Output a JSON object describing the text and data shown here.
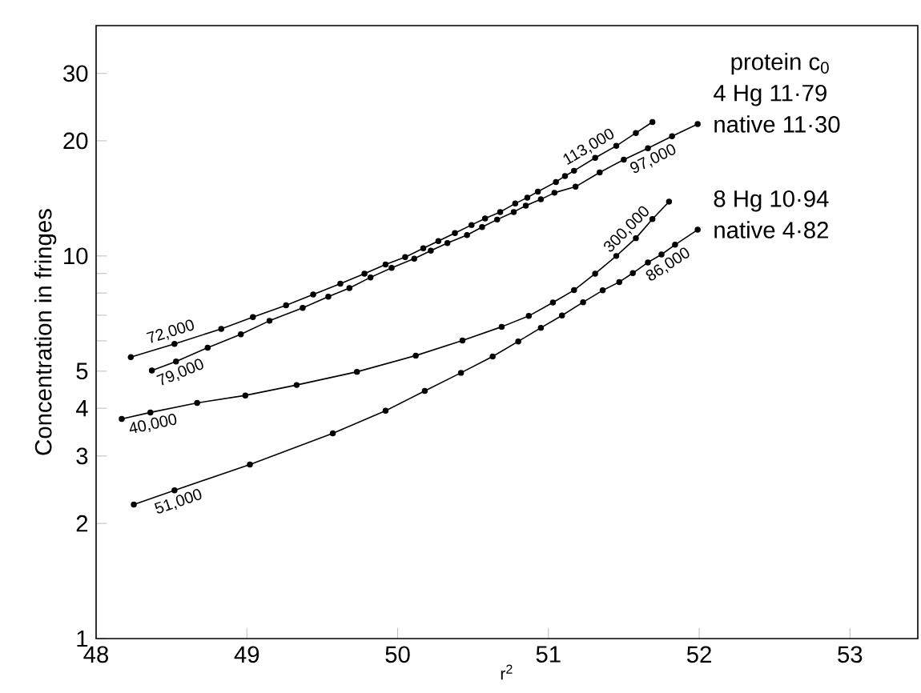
{
  "chart_data": {
    "type": "line",
    "xlabel": "r$^{2}$",
    "ylabel": "Concentration in fringes",
    "legend_title": "protein c$_{0}$",
    "log": "y",
    "marker": "circle",
    "line_style": "solid",
    "xlim": [
      48,
      53.45
    ],
    "ylim": [
      1,
      40
    ],
    "xticks": [
      48,
      49,
      50,
      51,
      52,
      53
    ],
    "yticks": [
      1,
      2,
      3,
      4,
      5,
      {
        "value": 6,
        "label": null
      },
      {
        "value": 7,
        "label": null
      },
      {
        "value": 8,
        "label": null
      },
      {
        "value": 9,
        "label": null
      },
      10,
      20,
      30
    ],
    "series": [
      {
        "name": "4 Hg  11·79",
        "color": "#000000",
        "x": [
          48.23,
          48.52,
          48.83,
          49.04,
          49.26,
          49.44,
          49.62,
          49.78,
          49.92,
          50.05,
          50.17,
          50.27,
          50.38,
          50.49,
          50.58,
          50.68,
          50.78,
          50.86,
          50.93,
          51.05,
          51.11,
          51.17,
          51.31,
          51.45,
          51.58,
          51.69
        ],
        "values": [
          5.44,
          5.89,
          6.45,
          6.92,
          7.43,
          7.93,
          8.46,
          8.99,
          9.5,
          9.93,
          10.47,
          10.94,
          11.48,
          12.05,
          12.53,
          13.03,
          13.71,
          14.21,
          14.73,
          15.61,
          16.18,
          16.7,
          18.05,
          19.4,
          20.96,
          22.39
        ]
      },
      {
        "name": "native  11·30",
        "color": "#000000",
        "x": [
          48.37,
          48.53,
          48.74,
          48.96,
          49.15,
          49.37,
          49.54,
          49.68,
          49.82,
          49.96,
          50.11,
          50.22,
          50.33,
          50.46,
          50.56,
          50.66,
          50.77,
          50.85,
          50.95,
          51.04,
          51.18,
          51.34,
          51.5,
          51.66,
          51.82,
          51.99
        ],
        "values": [
          5.02,
          5.3,
          5.76,
          6.24,
          6.77,
          7.32,
          7.83,
          8.24,
          8.79,
          9.31,
          9.84,
          10.32,
          10.81,
          11.34,
          11.9,
          12.45,
          13.03,
          13.54,
          14.06,
          14.63,
          15.17,
          16.53,
          17.86,
          19.13,
          20.56,
          22.12
        ]
      },
      {
        "name": "8 Hg  10·94",
        "color": "#000000",
        "x": [
          48.17,
          48.36,
          48.67,
          48.99,
          49.33,
          49.73,
          50.12,
          50.43,
          50.69,
          50.87,
          51.03,
          51.17,
          51.31,
          51.45,
          51.58,
          51.69,
          51.8
        ],
        "values": [
          3.75,
          3.9,
          4.13,
          4.32,
          4.6,
          4.98,
          5.49,
          6.01,
          6.53,
          6.97,
          7.56,
          8.14,
          8.99,
          10.0,
          11.13,
          12.49,
          13.86
        ]
      },
      {
        "name": "native  4·82",
        "color": "#000000",
        "x": [
          48.25,
          48.52,
          49.02,
          49.57,
          49.92,
          50.18,
          50.42,
          50.63,
          50.8,
          50.95,
          51.09,
          51.23,
          51.36,
          51.47,
          51.56,
          51.66,
          51.75,
          51.84,
          51.99
        ],
        "values": [
          2.24,
          2.44,
          2.85,
          3.44,
          3.94,
          4.44,
          4.95,
          5.46,
          5.98,
          6.49,
          6.99,
          7.57,
          8.13,
          8.55,
          9.02,
          9.62,
          10.09,
          10.7,
          11.71
        ]
      }
    ],
    "annotations": [
      {
        "text": "72,000",
        "x": 48.52,
        "y": 5.89
      },
      {
        "text": "79,000",
        "x": 48.53,
        "y": 5.3
      },
      {
        "text": "40,000",
        "x": 48.36,
        "y": 3.9
      },
      {
        "text": "51,000",
        "x": 48.52,
        "y": 2.44
      },
      {
        "text": "113,000",
        "x": 51.31,
        "y": 18.05
      },
      {
        "text": "97,000",
        "x": 51.66,
        "y": 19.13
      },
      {
        "text": "300,000",
        "x": 51.58,
        "y": 11.13
      },
      {
        "text": "86,000",
        "x": 51.75,
        "y": 10.09
      }
    ]
  }
}
